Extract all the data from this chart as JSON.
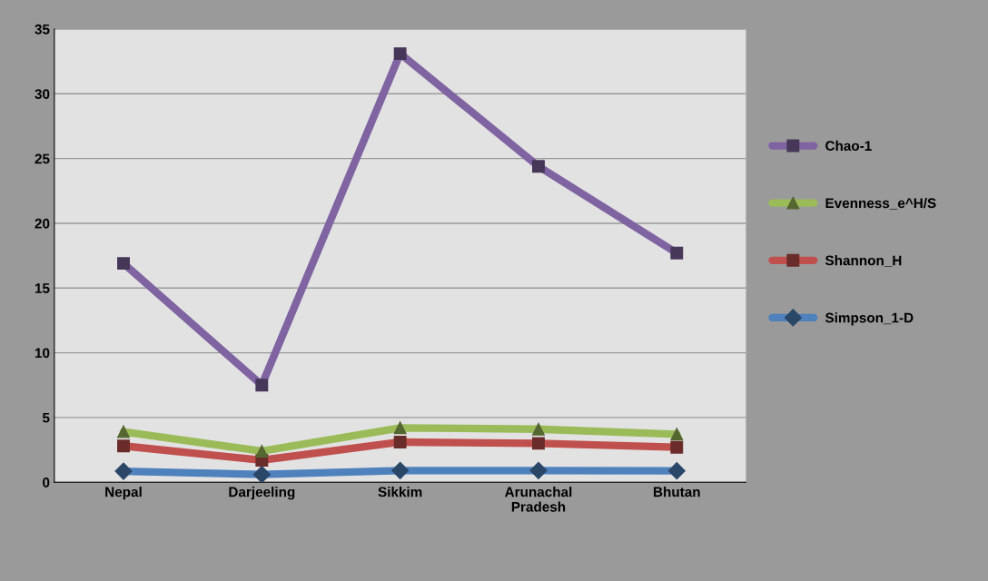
{
  "chart_data": {
    "type": "line",
    "categories": [
      "Nepal",
      "Darjeeling",
      "Sikkim",
      "Arunachal\nPradesh",
      "Bhutan"
    ],
    "series": [
      {
        "name": "Chao-1",
        "color": "#8064a2",
        "marker": "square",
        "values": [
          16.9,
          7.5,
          33.1,
          24.4,
          17.7
        ]
      },
      {
        "name": "Evenness_e^H/S",
        "color": "#9bbb59",
        "marker": "triangle",
        "values": [
          3.9,
          2.4,
          4.2,
          4.1,
          3.7
        ]
      },
      {
        "name": "Shannon_H",
        "color": "#c0504d",
        "marker": "square",
        "values": [
          2.8,
          1.7,
          3.1,
          3.0,
          2.7
        ]
      },
      {
        "name": "Simpson_1-D",
        "color": "#4f81bd",
        "marker": "diamond",
        "values": [
          0.85,
          0.6,
          0.9,
          0.9,
          0.88
        ]
      }
    ],
    "ylim": [
      0,
      35
    ],
    "yticks": [
      0,
      5,
      10,
      15,
      20,
      25,
      30,
      35
    ],
    "grid": "y",
    "legend": "right",
    "line_style": "solid"
  }
}
